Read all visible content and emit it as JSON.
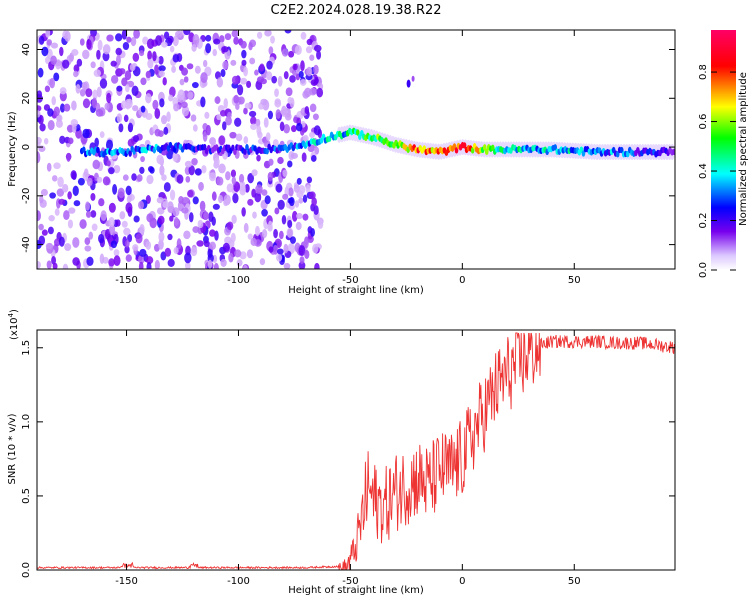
{
  "figure_title": "C2E2.2024.028.19.38.R22",
  "chart_data": [
    {
      "type": "heatmap",
      "ylabel": "Frequency (Hz)",
      "xlabel": "Height of straight line (km)",
      "xlim": [
        -190,
        95
      ],
      "ylim": [
        -50,
        48
      ],
      "x_ticks": [
        -150,
        -100,
        -50,
        0,
        50
      ],
      "y_ticks": [
        -40,
        -20,
        0,
        20,
        40
      ],
      "colorbar": {
        "label": "Normalized spectral amplitude",
        "range": [
          0,
          0.97
        ],
        "ticks": [
          0.0,
          0.2,
          0.4,
          0.6,
          0.8
        ],
        "colormap": [
          "#ffffff",
          "#7700ee",
          "#0000ff",
          "#00ffff",
          "#00ff00",
          "#ffff00",
          "#ff0000",
          "#ff0066"
        ]
      },
      "ridge": {
        "x": [
          -170,
          -150,
          -130,
          -110,
          -90,
          -75,
          -60,
          -50,
          -40,
          -30,
          -20,
          -10,
          0,
          10,
          20,
          40,
          60,
          80,
          95
        ],
        "y": [
          -2,
          -2,
          0,
          -1,
          -1,
          0,
          4,
          6,
          4,
          1,
          -1,
          -2,
          0,
          -1,
          -1,
          -1,
          -2,
          -2,
          -2
        ],
        "amplitude": [
          0.3,
          0.35,
          0.3,
          0.2,
          0.25,
          0.3,
          0.4,
          0.45,
          0.55,
          0.65,
          0.8,
          0.75,
          0.85,
          0.6,
          0.45,
          0.4,
          0.35,
          0.25,
          0.2
        ]
      },
      "noise_region_x": [
        -190,
        -63
      ]
    },
    {
      "type": "line",
      "ylabel": "SNR (10 * v/v)",
      "y_scale_label": "(x10",
      "y_scale_exp": "4",
      "xlabel": "Height of straight line (km)",
      "xlim": [
        -190,
        95
      ],
      "ylim": [
        0,
        1.62
      ],
      "x_ticks": [
        -150,
        -100,
        -50,
        0,
        50
      ],
      "y_ticks": [
        0.0,
        0.5,
        1.0,
        1.5
      ],
      "series": [
        {
          "color": "#ee3333",
          "x": [
            -190,
            -120,
            -70,
            -52,
            -48,
            -45,
            -42,
            -40,
            -35,
            -30,
            -25,
            -20,
            -15,
            -10,
            -5,
            0,
            5,
            10,
            15,
            20,
            25,
            30,
            35,
            40,
            50,
            60,
            70,
            80,
            95
          ],
          "y": [
            0.01,
            0.01,
            0.01,
            0.02,
            0.15,
            0.35,
            0.6,
            0.5,
            0.45,
            0.55,
            0.6,
            0.65,
            0.6,
            0.7,
            0.7,
            0.78,
            0.95,
            1.1,
            1.25,
            1.35,
            1.42,
            1.5,
            1.54,
            1.56,
            1.56,
            1.56,
            1.55,
            1.55,
            1.52
          ]
        }
      ]
    }
  ]
}
